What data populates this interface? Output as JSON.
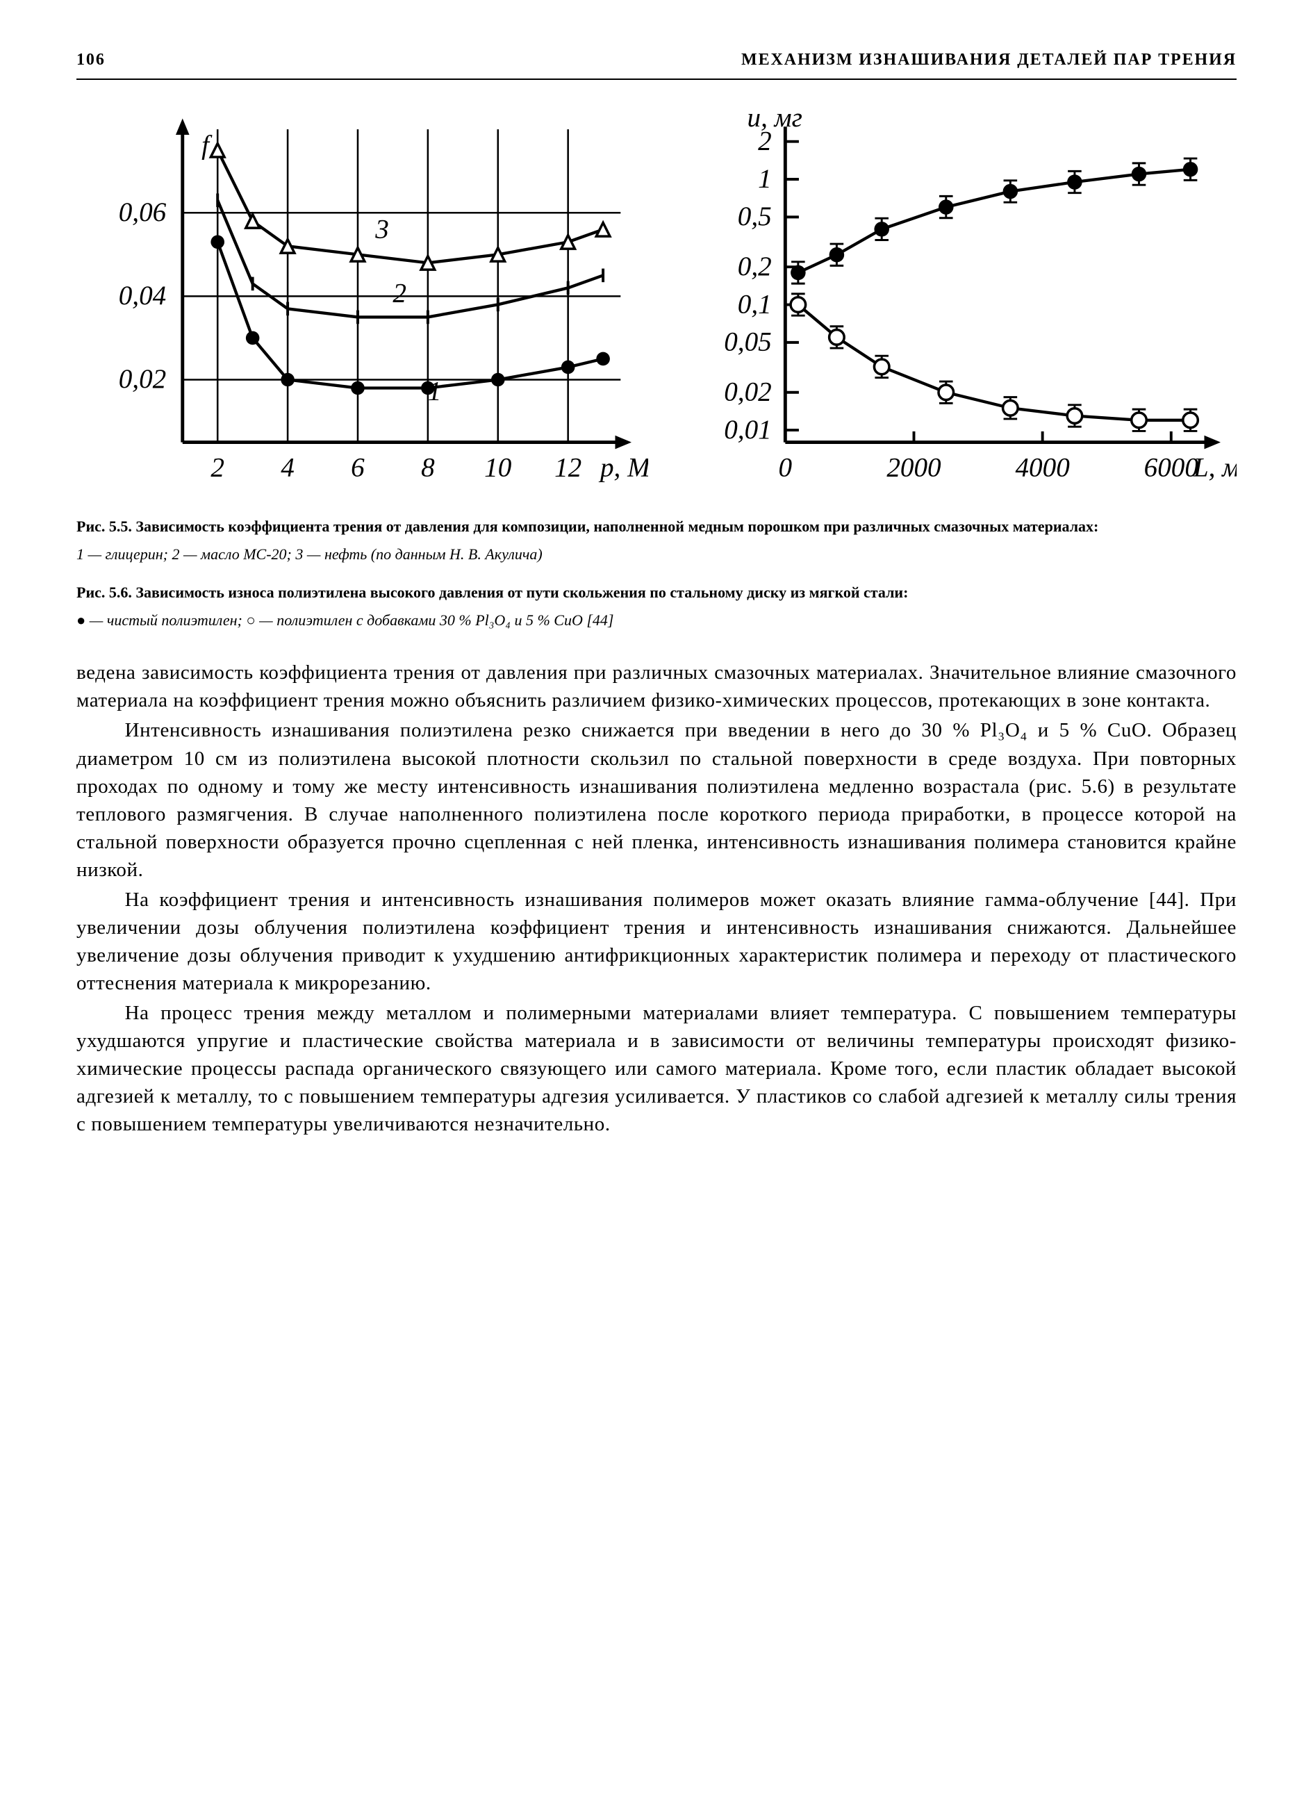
{
  "header": {
    "page_number": "106",
    "running_title": "МЕХАНИЗМ ИЗНАШИВАНИЯ ДЕТАЛЕЙ ПАР ТРЕНИЯ"
  },
  "figure_left": {
    "type": "line",
    "y_ticks": [
      "0,02",
      "0,04",
      "0,06"
    ],
    "y_label": "f",
    "x_ticks": [
      "2",
      "4",
      "6",
      "8",
      "10",
      "12"
    ],
    "x_label": "p, МПа",
    "series_labels": [
      "1",
      "2",
      "3"
    ],
    "series": {
      "s1": [
        {
          "x": 2,
          "y": 0.053
        },
        {
          "x": 3,
          "y": 0.03
        },
        {
          "x": 4,
          "y": 0.02
        },
        {
          "x": 6,
          "y": 0.018
        },
        {
          "x": 8,
          "y": 0.018
        },
        {
          "x": 10,
          "y": 0.02
        },
        {
          "x": 12,
          "y": 0.023
        },
        {
          "x": 13,
          "y": 0.025
        }
      ],
      "s2": [
        {
          "x": 2,
          "y": 0.063
        },
        {
          "x": 3,
          "y": 0.043
        },
        {
          "x": 4,
          "y": 0.037
        },
        {
          "x": 6,
          "y": 0.035
        },
        {
          "x": 8,
          "y": 0.035
        },
        {
          "x": 10,
          "y": 0.038
        },
        {
          "x": 12,
          "y": 0.042
        },
        {
          "x": 13,
          "y": 0.045
        }
      ],
      "s3": [
        {
          "x": 2,
          "y": 0.075
        },
        {
          "x": 3,
          "y": 0.058
        },
        {
          "x": 4,
          "y": 0.052
        },
        {
          "x": 6,
          "y": 0.05
        },
        {
          "x": 8,
          "y": 0.048
        },
        {
          "x": 10,
          "y": 0.05
        },
        {
          "x": 12,
          "y": 0.053
        },
        {
          "x": 13,
          "y": 0.056
        }
      ]
    },
    "marker": {
      "s1": "filled-circle",
      "s2": "vbar",
      "s3": "open-triangle"
    },
    "styling": {
      "axis_color": "#000000",
      "grid_color": "#000000",
      "series_color": "#000000",
      "line_width": 2.2,
      "marker_size": 5,
      "font_family": "serif-italic",
      "label_fontsize": 20
    }
  },
  "figure_right": {
    "type": "line-log-y",
    "y_ticks": [
      "0,01",
      "0,02",
      "0,05",
      "0,1",
      "0,2",
      "0,5",
      "1",
      "2"
    ],
    "y_ticks_values": [
      0.01,
      0.02,
      0.05,
      0.1,
      0.2,
      0.5,
      1,
      2
    ],
    "y_label": "u, мг",
    "x_ticks": [
      "0",
      "2000",
      "4000",
      "6000"
    ],
    "x_label": "L, м",
    "series": {
      "filled": [
        {
          "x": 200,
          "y": 0.18
        },
        {
          "x": 800,
          "y": 0.25
        },
        {
          "x": 1500,
          "y": 0.4
        },
        {
          "x": 2500,
          "y": 0.6
        },
        {
          "x": 3500,
          "y": 0.8
        },
        {
          "x": 4500,
          "y": 0.95
        },
        {
          "x": 5500,
          "y": 1.1
        },
        {
          "x": 6300,
          "y": 1.2
        }
      ],
      "open": [
        {
          "x": 200,
          "y": 0.1
        },
        {
          "x": 800,
          "y": 0.055
        },
        {
          "x": 1500,
          "y": 0.032
        },
        {
          "x": 2500,
          "y": 0.02
        },
        {
          "x": 3500,
          "y": 0.015
        },
        {
          "x": 4500,
          "y": 0.013
        },
        {
          "x": 5500,
          "y": 0.012
        },
        {
          "x": 6300,
          "y": 0.012
        }
      ]
    },
    "markers": {
      "filled": "filled-circle-errorbar",
      "open": "open-circle-errorbar"
    },
    "styling": {
      "axis_color": "#000000",
      "series_color": "#000000",
      "line_width": 2.2,
      "marker_size": 5.5,
      "font_family": "serif-italic",
      "label_fontsize": 20
    }
  },
  "caption55": {
    "bold": "Рис. 5.5. Зависимость коэффициента трения от давления для композиции, наполненной медным порошком при различных смазочных материалах:",
    "legend": "1 — глицерин; 2 — масло МС-20; 3 — нефть (по данным Н. В. Акулича)"
  },
  "caption56": {
    "bold": "Рис. 5.6. Зависимость износа полиэтилена высокого давления от пути скольжения по стальному диску из мягкой стали:",
    "legend": "● — чистый полиэтилен; ○ — полиэтилен с добавками 30 % Pl₃O₄ и 5 % CuO [44]"
  },
  "body": {
    "p1": "ведена зависимость коэффициента трения от давления при различных смазочных материалах. Значительное влияние смазочного материала на коэффициент трения можно объяснить различием физико-химических процессов, протекающих в зоне контакта.",
    "p2": "Интенсивность изнашивания полиэтилена резко снижается при введении в него до 30 % Pl₃O₄ и 5 % CuO. Образец диаметром 10 см из полиэтилена высокой плотности скользил по стальной поверхности в среде воздуха. При повторных проходах по одному и тому же месту интенсивность изнашивания полиэтилена медленно возрастала (рис. 5.6) в результате теплового размягчения. В случае наполненного полиэтилена после короткого периода приработки, в процессе которой на стальной поверхности образуется прочно сцепленная с ней пленка, интенсивность изнашивания полимера становится крайне низкой.",
    "p3": "На коэффициент трения и интенсивность изнашивания полимеров может оказать влияние гамма-облучение [44]. При увеличении дозы облучения полиэтилена коэффициент трения и интенсивность изнашивания снижаются. Дальнейшее увеличение дозы облучения приводит к ухудшению антифрикционных характеристик полимера и переходу от пластического оттеснения материала к микрорезанию.",
    "p4": "На процесс трения между металлом и полимерными материалами влияет температура. С повышением температуры ухудшаются упругие и пластические свойства материала и в зависимости от величины температуры происходят физико-химические процессы распада органического связующего или самого материала. Кроме того, если пластик обладает высокой адгезией к металлу, то с повышением температуры адгезия усиливается. У пластиков со слабой адгезией к металлу силы трения с повышением температуры увеличиваются незначительно."
  }
}
